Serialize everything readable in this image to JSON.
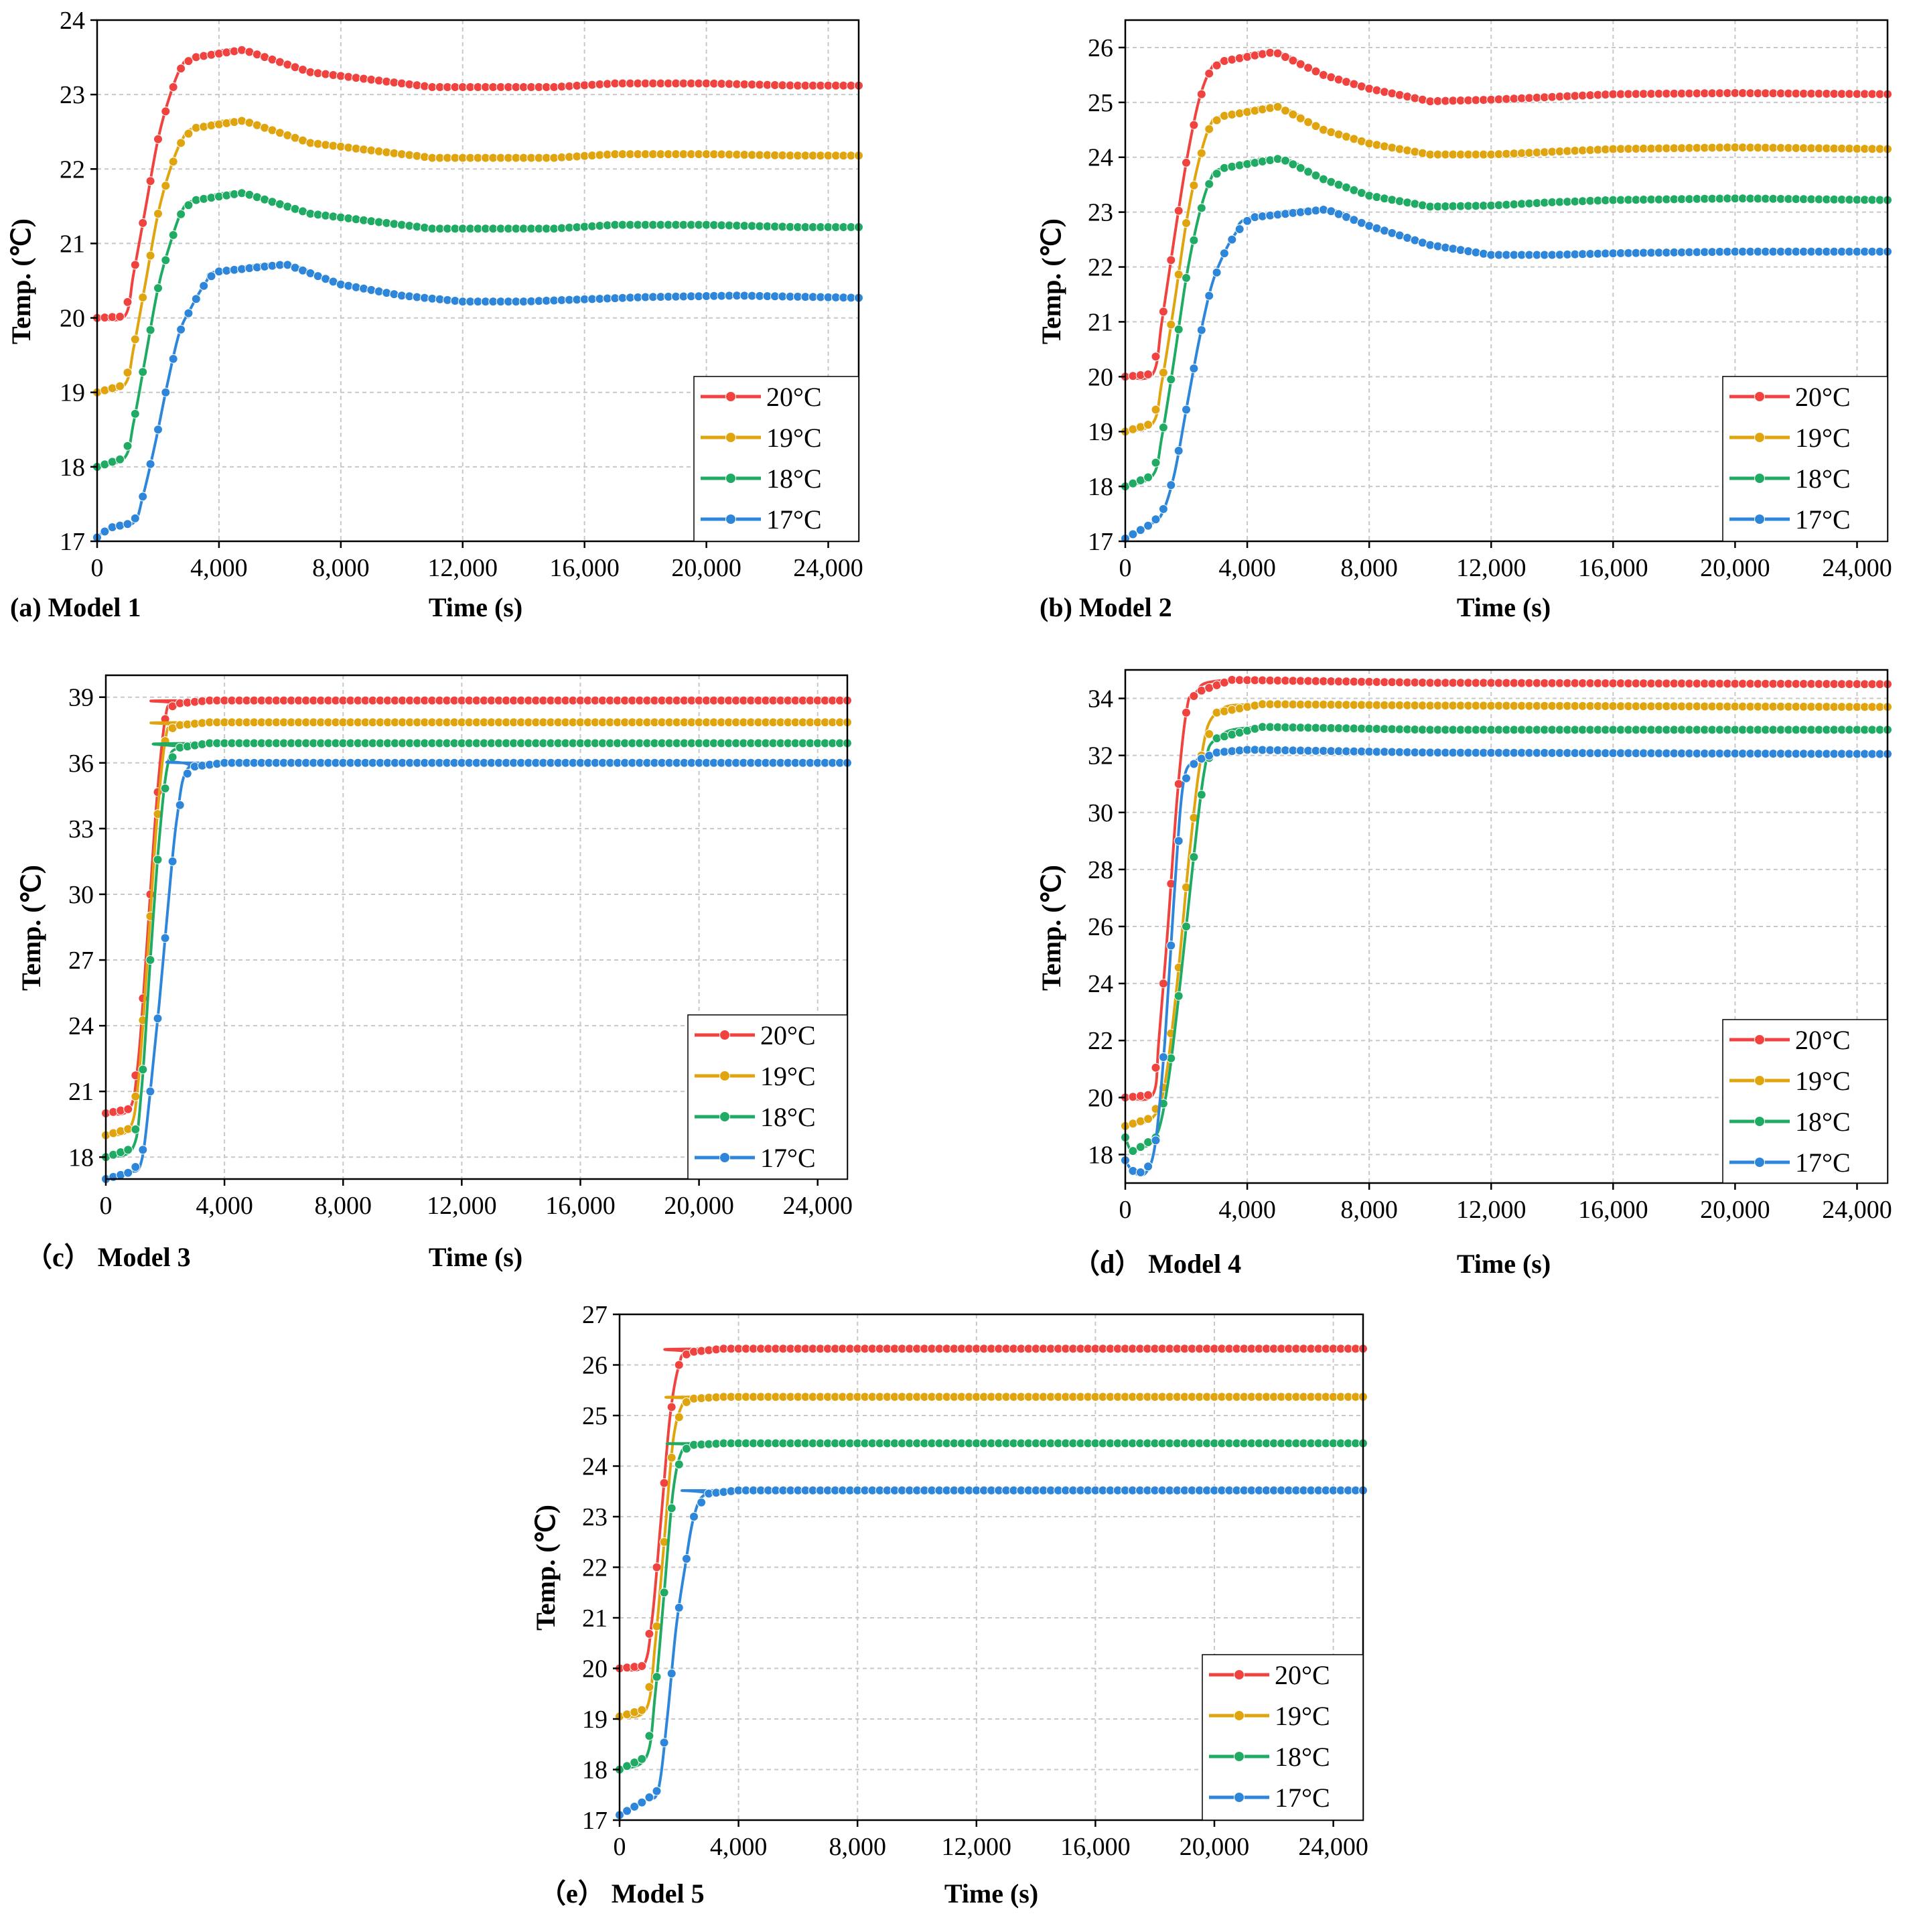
{
  "figure": {
    "series_colors": {
      "20°C": "#f0433f",
      "19°C": "#e0a50e",
      "18°C": "#1fab63",
      "17°C": "#2d86d9"
    }
  },
  "chart_data": [
    {
      "type": "line",
      "caption": "(a) Model 1",
      "xlabel": "Time (s)",
      "ylabel": "Temp. (℃)",
      "xlim": [
        0,
        25000
      ],
      "ylim": [
        17,
        24
      ],
      "xticks": [
        0,
        4000,
        8000,
        12000,
        16000,
        20000,
        24000
      ],
      "xtick_labels": [
        "0",
        "4,000",
        "8,000",
        "12,000",
        "16,000",
        "20,000",
        "24,000"
      ],
      "yticks": [
        17,
        18,
        19,
        20,
        21,
        22,
        23,
        24
      ],
      "ytick_labels": [
        "17",
        "18",
        "19",
        "20",
        "21",
        "22",
        "23",
        "24"
      ],
      "grid": true,
      "legend": "bottom-right",
      "series": [
        {
          "name": "20°C",
          "color": "#f0433f",
          "x": [
            0,
            900,
            1200,
            1600,
            2000,
            2400,
            2800,
            3200,
            4800,
            7000,
            9000,
            11000,
            13000,
            15000,
            17000,
            20000,
            23000,
            25000
          ],
          "y": [
            20.0,
            20.02,
            20.6,
            21.5,
            22.4,
            23.0,
            23.4,
            23.5,
            23.6,
            23.3,
            23.2,
            23.1,
            23.1,
            23.1,
            23.15,
            23.15,
            23.12,
            23.12
          ]
        },
        {
          "name": "19°C",
          "color": "#e0a50e",
          "x": [
            0,
            900,
            1200,
            1600,
            2000,
            2400,
            2800,
            3200,
            4800,
            7000,
            9000,
            11000,
            13000,
            15000,
            17000,
            20000,
            23000,
            25000
          ],
          "y": [
            19.0,
            19.1,
            19.6,
            20.5,
            21.4,
            22.0,
            22.4,
            22.55,
            22.65,
            22.35,
            22.25,
            22.15,
            22.15,
            22.15,
            22.2,
            22.2,
            22.18,
            22.18
          ]
        },
        {
          "name": "18°C",
          "color": "#1fab63",
          "x": [
            0,
            900,
            1200,
            1600,
            2000,
            2400,
            2800,
            3200,
            4800,
            7000,
            9000,
            11000,
            13000,
            15000,
            17000,
            20000,
            23000,
            25000
          ],
          "y": [
            18.0,
            18.12,
            18.6,
            19.5,
            20.4,
            21.0,
            21.45,
            21.58,
            21.68,
            21.4,
            21.3,
            21.2,
            21.2,
            21.2,
            21.25,
            21.25,
            21.22,
            21.22
          ]
        },
        {
          "name": "17°C",
          "color": "#2d86d9",
          "x": [
            0,
            400,
            1200,
            1500,
            1900,
            2300,
            2700,
            3100,
            3600,
            3900,
            6200,
            8000,
            10000,
            12000,
            14000,
            16000,
            18000,
            21000,
            25000
          ],
          "y": [
            17.05,
            17.18,
            17.25,
            17.6,
            18.3,
            19.1,
            19.8,
            20.15,
            20.5,
            20.62,
            20.72,
            20.45,
            20.3,
            20.22,
            20.22,
            20.25,
            20.28,
            20.3,
            20.27
          ]
        }
      ]
    },
    {
      "type": "line",
      "caption": "(b) Model 2",
      "xlabel": "Time (s)",
      "ylabel": "Temp. (℃)",
      "xlim": [
        0,
        25000
      ],
      "ylim": [
        17,
        26.5
      ],
      "xticks": [
        0,
        4000,
        8000,
        12000,
        16000,
        20000,
        24000
      ],
      "xtick_labels": [
        "0",
        "4,000",
        "8,000",
        "12,000",
        "16,000",
        "20,000",
        "24,000"
      ],
      "yticks": [
        17,
        18,
        19,
        20,
        21,
        22,
        23,
        24,
        25,
        26
      ],
      "ytick_labels": [
        "17",
        "18",
        "19",
        "20",
        "21",
        "22",
        "23",
        "24",
        "25",
        "26"
      ],
      "grid": true,
      "legend": "bottom-right",
      "series": [
        {
          "name": "20°C",
          "color": "#f0433f",
          "x": [
            0,
            900,
            1200,
            1600,
            2000,
            2400,
            2800,
            3200,
            4900,
            6500,
            8000,
            10000,
            12000,
            14000,
            16000,
            20000,
            25000
          ],
          "y": [
            20.0,
            20.05,
            21.0,
            22.5,
            23.9,
            25.0,
            25.6,
            25.75,
            25.92,
            25.5,
            25.25,
            25.02,
            25.05,
            25.1,
            25.15,
            25.17,
            25.15
          ]
        },
        {
          "name": "19°C",
          "color": "#e0a50e",
          "x": [
            0,
            900,
            1200,
            1600,
            2000,
            2400,
            2800,
            3200,
            5000,
            6500,
            8000,
            10000,
            12000,
            14000,
            16000,
            20000,
            25000
          ],
          "y": [
            19.0,
            19.15,
            19.9,
            21.3,
            22.8,
            23.9,
            24.6,
            24.75,
            24.92,
            24.5,
            24.25,
            24.05,
            24.05,
            24.1,
            24.15,
            24.18,
            24.15
          ]
        },
        {
          "name": "18°C",
          "color": "#1fab63",
          "x": [
            0,
            900,
            1200,
            1600,
            2000,
            2400,
            2800,
            3200,
            5100,
            6500,
            8000,
            10000,
            12000,
            14000,
            16000,
            20000,
            25000
          ],
          "y": [
            18.0,
            18.2,
            18.9,
            20.3,
            21.8,
            22.9,
            23.6,
            23.8,
            23.98,
            23.6,
            23.3,
            23.1,
            23.12,
            23.18,
            23.22,
            23.25,
            23.22
          ]
        },
        {
          "name": "17°C",
          "color": "#2d86d9",
          "x": [
            0,
            800,
            1200,
            1600,
            2000,
            2400,
            2800,
            3200,
            3600,
            4100,
            6600,
            8000,
            10000,
            12000,
            14000,
            16000,
            20000,
            25000
          ],
          "y": [
            17.05,
            17.3,
            17.5,
            18.2,
            19.4,
            20.6,
            21.6,
            22.2,
            22.6,
            22.9,
            23.05,
            22.75,
            22.4,
            22.22,
            22.22,
            22.25,
            22.28,
            22.28
          ]
        }
      ]
    },
    {
      "type": "line",
      "caption": "（c） Model 3",
      "xlabel": "Time (s)",
      "ylabel": "Temp. (℃)",
      "xlim": [
        0,
        25000
      ],
      "ylim": [
        17,
        40
      ],
      "xticks": [
        0,
        4000,
        8000,
        12000,
        16000,
        20000,
        24000
      ],
      "xtick_labels": [
        "0",
        "4,000",
        "8,000",
        "12,000",
        "16,000",
        "20,000",
        "24,000"
      ],
      "yticks": [
        18,
        21,
        24,
        27,
        30,
        33,
        36,
        39
      ],
      "ytick_labels": [
        "18",
        "21",
        "24",
        "27",
        "30",
        "33",
        "36",
        "39"
      ],
      "grid": true,
      "legend": "bottom-right",
      "series": [
        {
          "name": "20°C",
          "color": "#f0433f",
          "x": [
            0,
            800,
            1100,
            1400,
            1700,
            2000,
            2300,
            3500,
            25000
          ],
          "y": [
            20.0,
            20.2,
            22.5,
            28.0,
            34.0,
            38.0,
            38.7,
            38.85,
            38.85
          ]
        },
        {
          "name": "19°C",
          "color": "#e0a50e",
          "x": [
            0,
            800,
            1100,
            1400,
            1700,
            2000,
            2300,
            3500,
            25000
          ],
          "y": [
            19.0,
            19.3,
            21.5,
            27.0,
            33.0,
            37.0,
            37.7,
            37.85,
            37.85
          ]
        },
        {
          "name": "18°C",
          "color": "#1fab63",
          "x": [
            0,
            900,
            1200,
            1500,
            1800,
            2100,
            2500,
            3500,
            25000
          ],
          "y": [
            18.0,
            18.4,
            21.0,
            27.0,
            32.5,
            36.0,
            36.7,
            36.9,
            36.9
          ]
        },
        {
          "name": "17°C",
          "color": "#2d86d9",
          "x": [
            0,
            800,
            1200,
            1500,
            1800,
            2100,
            2400,
            2800,
            4000,
            25000
          ],
          "y": [
            17.0,
            17.3,
            17.8,
            21.0,
            25.0,
            29.5,
            33.5,
            35.8,
            36.0,
            36.0
          ]
        }
      ]
    },
    {
      "type": "line",
      "caption": "（d） Model 4",
      "xlabel": "Time (s)",
      "ylabel": "Temp. (℃)",
      "xlim": [
        0,
        25000
      ],
      "ylim": [
        17,
        35
      ],
      "xticks": [
        0,
        4000,
        8000,
        12000,
        16000,
        20000,
        24000
      ],
      "xtick_labels": [
        "0",
        "4,000",
        "8,000",
        "12,000",
        "16,000",
        "20,000",
        "24,000"
      ],
      "yticks": [
        18,
        20,
        22,
        24,
        26,
        28,
        30,
        32,
        34
      ],
      "ytick_labels": [
        "18",
        "20",
        "22",
        "24",
        "26",
        "28",
        "30",
        "32",
        "34"
      ],
      "grid": true,
      "legend": "bottom-right",
      "series": [
        {
          "name": "20°C",
          "color": "#f0433f",
          "x": [
            0,
            900,
            1100,
            1400,
            1700,
            2000,
            2300,
            3500,
            10000,
            25000
          ],
          "y": [
            20.0,
            20.1,
            22.0,
            26.0,
            30.5,
            33.5,
            34.2,
            34.65,
            34.55,
            34.5
          ]
        },
        {
          "name": "19°C",
          "color": "#e0a50e",
          "x": [
            0,
            900,
            1300,
            1700,
            2100,
            2500,
            3000,
            4500,
            10000,
            25000
          ],
          "y": [
            19.0,
            19.3,
            20.5,
            24.0,
            28.5,
            32.0,
            33.5,
            33.8,
            33.75,
            33.7
          ]
        },
        {
          "name": "18°C",
          "color": "#1fab63",
          "x": [
            0,
            200,
            400,
            1000,
            1400,
            1800,
            2200,
            2600,
            3000,
            4500,
            10000,
            25000
          ],
          "y": [
            18.6,
            18.1,
            18.2,
            18.6,
            20.5,
            24.0,
            28.0,
            31.5,
            32.6,
            33.0,
            32.9,
            32.9
          ]
        },
        {
          "name": "17°C",
          "color": "#2d86d9",
          "x": [
            0,
            300,
            700,
            1000,
            1300,
            1600,
            1900,
            2300,
            3000,
            4000,
            10000,
            25000
          ],
          "y": [
            17.8,
            17.35,
            17.4,
            18.5,
            22.0,
            27.0,
            31.0,
            31.8,
            32.1,
            32.2,
            32.1,
            32.05
          ]
        }
      ]
    },
    {
      "type": "line",
      "caption": "（e） Model 5",
      "xlabel": "Time (s)",
      "ylabel": "Temp. (℃)",
      "xlim": [
        0,
        25000
      ],
      "ylim": [
        17,
        27
      ],
      "xticks": [
        0,
        4000,
        8000,
        12000,
        16000,
        20000,
        24000
      ],
      "xtick_labels": [
        "0",
        "4,000",
        "8,000",
        "12,000",
        "16,000",
        "20,000",
        "24,000"
      ],
      "yticks": [
        17,
        18,
        19,
        20,
        21,
        22,
        23,
        24,
        25,
        26,
        27
      ],
      "ytick_labels": [
        "17",
        "18",
        "19",
        "20",
        "21",
        "22",
        "23",
        "24",
        "25",
        "26",
        "27"
      ],
      "grid": true,
      "legend": "bottom-right",
      "series": [
        {
          "name": "20°C",
          "color": "#f0433f",
          "x": [
            0,
            800,
            1100,
            1400,
            1700,
            2000,
            2300,
            3500,
            25000
          ],
          "y": [
            20.0,
            20.05,
            21.0,
            23.0,
            25.0,
            26.0,
            26.25,
            26.32,
            26.32
          ]
        },
        {
          "name": "19°C",
          "color": "#e0a50e",
          "x": [
            0,
            900,
            1200,
            1500,
            1800,
            2100,
            2400,
            3500,
            25000
          ],
          "y": [
            19.05,
            19.2,
            20.5,
            22.5,
            24.5,
            25.2,
            25.33,
            25.37,
            25.37
          ]
        },
        {
          "name": "18°C",
          "color": "#1fab63",
          "x": [
            0,
            900,
            1200,
            1500,
            1800,
            2100,
            2500,
            3500,
            25000
          ],
          "y": [
            18.0,
            18.25,
            19.5,
            21.5,
            23.5,
            24.3,
            24.42,
            24.45,
            24.45
          ]
        },
        {
          "name": "17°C",
          "color": "#2d86d9",
          "x": [
            0,
            900,
            1300,
            1600,
            1900,
            2200,
            2500,
            2900,
            4000,
            25000
          ],
          "y": [
            17.1,
            17.4,
            17.6,
            19.0,
            20.8,
            22.0,
            23.0,
            23.45,
            23.52,
            23.52
          ]
        }
      ]
    }
  ]
}
